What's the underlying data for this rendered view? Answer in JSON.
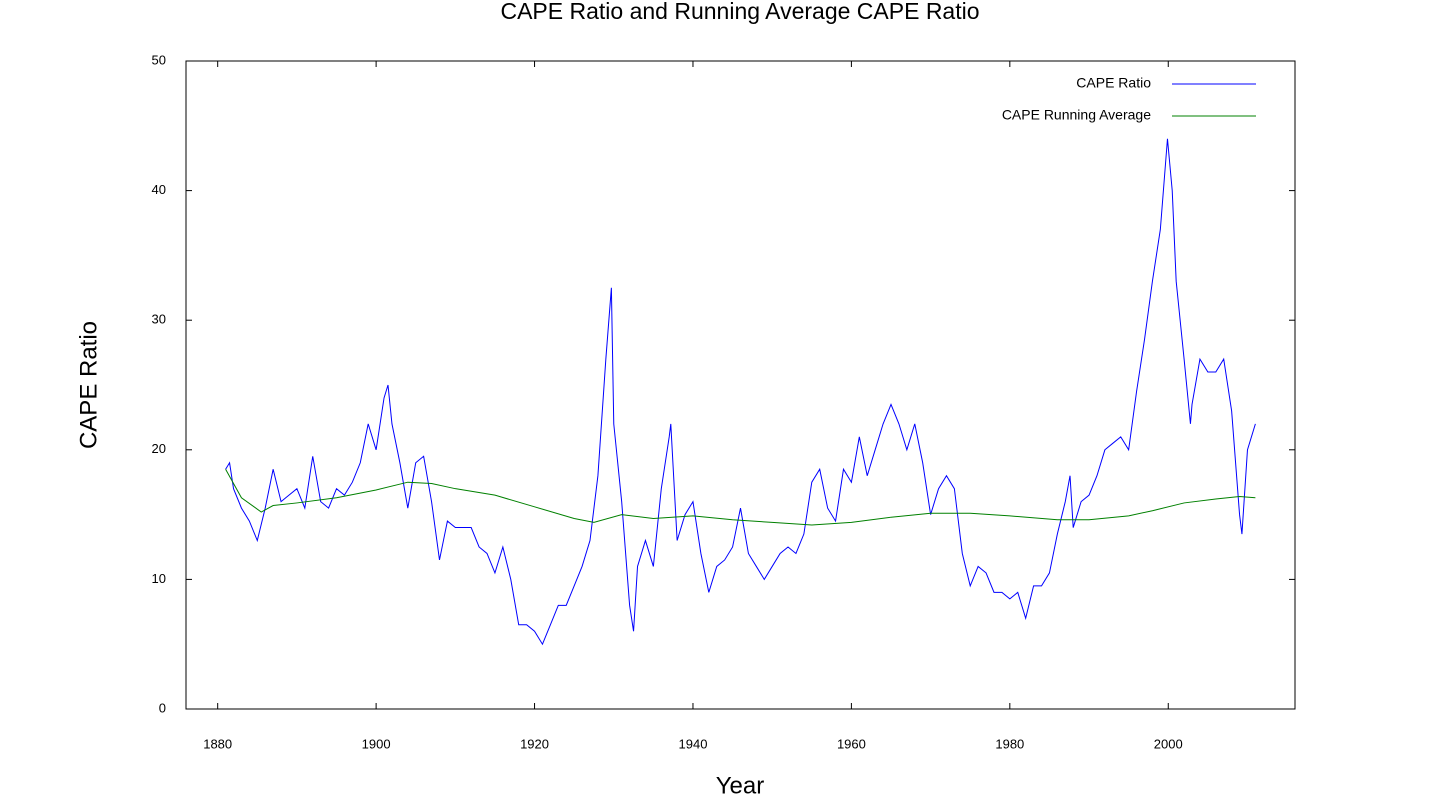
{
  "chart_data": {
    "type": "line",
    "title": "CAPE Ratio and Running Average CAPE Ratio",
    "x_label": "Year",
    "y_label": "CAPE Ratio",
    "xlim": [
      1876,
      2016
    ],
    "ylim": [
      0,
      50
    ],
    "xticks": [
      1880,
      1900,
      1920,
      1940,
      1960,
      1980,
      2000
    ],
    "yticks": [
      0,
      10,
      20,
      30,
      40,
      50
    ],
    "legend": "upper right",
    "series": [
      {
        "name": "CAPE Ratio",
        "color": "#0000ff",
        "x": [
          1881,
          1881.5,
          1882,
          1883,
          1884,
          1885,
          1886,
          1887,
          1888,
          1889,
          1890,
          1891,
          1892,
          1893,
          1894,
          1895,
          1896,
          1897,
          1898,
          1899,
          1900,
          1901,
          1901.5,
          1902,
          1903,
          1904,
          1905,
          1906,
          1907,
          1908,
          1909,
          1910,
          1911,
          1912,
          1913,
          1914,
          1915,
          1916,
          1917,
          1918,
          1919,
          1920,
          1921,
          1922,
          1923,
          1924,
          1925,
          1926,
          1927,
          1928,
          1929,
          1929.7,
          1930,
          1931,
          1932,
          1932.5,
          1933,
          1934,
          1935,
          1936,
          1937,
          1937.2,
          1938,
          1939,
          1940,
          1941,
          1942,
          1943,
          1944,
          1945,
          1946,
          1947,
          1948,
          1949,
          1950,
          1951,
          1952,
          1953,
          1954,
          1955,
          1956,
          1957,
          1958,
          1959,
          1960,
          1961,
          1962,
          1963,
          1964,
          1965,
          1966,
          1967,
          1968,
          1969,
          1970,
          1971,
          1972,
          1973,
          1974,
          1975,
          1976,
          1977,
          1978,
          1979,
          1980,
          1981,
          1982,
          1983,
          1984,
          1985,
          1986,
          1987,
          1987.6,
          1988,
          1989,
          1990,
          1991,
          1992,
          1993,
          1994,
          1995,
          1996,
          1997,
          1998,
          1999,
          1999.9,
          2000.5,
          2001,
          2002,
          2002.8,
          2003,
          2004,
          2005,
          2006,
          2007,
          2008,
          2009,
          2009.3,
          2010,
          2011
        ],
        "values": [
          18.5,
          19,
          17,
          15.5,
          14.5,
          13,
          15.5,
          18.5,
          16,
          16.5,
          17,
          15.5,
          19.5,
          16,
          15.5,
          17,
          16.5,
          17.5,
          19,
          22,
          20,
          24,
          25,
          22,
          19,
          15.5,
          19,
          19.5,
          16,
          11.5,
          14.5,
          14,
          14,
          14,
          12.5,
          12,
          10.5,
          12.5,
          10,
          6.5,
          6.5,
          6,
          5,
          6.5,
          8,
          8,
          9.5,
          11,
          13,
          18,
          27,
          32.5,
          22,
          16,
          8,
          6,
          11,
          13,
          11,
          17,
          21,
          22,
          13,
          15,
          16,
          12,
          9,
          11,
          11.5,
          12.5,
          15.5,
          12,
          11,
          10,
          11,
          12,
          12.5,
          12,
          13.5,
          17.5,
          18.5,
          15.5,
          14.5,
          18.5,
          17.5,
          21,
          18,
          20,
          22,
          23.5,
          22,
          20,
          22,
          19,
          15,
          17,
          18,
          17,
          12,
          9.5,
          11,
          10.5,
          9,
          9,
          8.5,
          9,
          7,
          9.5,
          9.5,
          10.5,
          13.5,
          16,
          18,
          14,
          16,
          16.5,
          18,
          20,
          20.5,
          21,
          20,
          24.5,
          28.5,
          33,
          37,
          44,
          40,
          33,
          27,
          22,
          23.5,
          27,
          26,
          26,
          27,
          23,
          15,
          13.5,
          20,
          22
        ]
      },
      {
        "name": "CAPE Running Average",
        "color": "#008000",
        "x": [
          1881,
          1883,
          1885.5,
          1887,
          1890,
          1895,
          1900,
          1904,
          1907,
          1910,
          1915,
          1920,
          1925,
          1927.5,
          1931,
          1935,
          1940,
          1945,
          1950,
          1955,
          1960,
          1965,
          1970,
          1975,
          1980,
          1986,
          1990,
          1995,
          1998,
          2002,
          2006,
          2009,
          2011
        ],
        "values": [
          18.5,
          16.3,
          15.2,
          15.7,
          15.9,
          16.3,
          16.9,
          17.5,
          17.4,
          17.0,
          16.5,
          15.6,
          14.7,
          14.4,
          15.0,
          14.7,
          14.9,
          14.6,
          14.4,
          14.2,
          14.4,
          14.8,
          15.1,
          15.1,
          14.9,
          14.6,
          14.6,
          14.9,
          15.3,
          15.9,
          16.2,
          16.4,
          16.3
        ]
      }
    ]
  }
}
